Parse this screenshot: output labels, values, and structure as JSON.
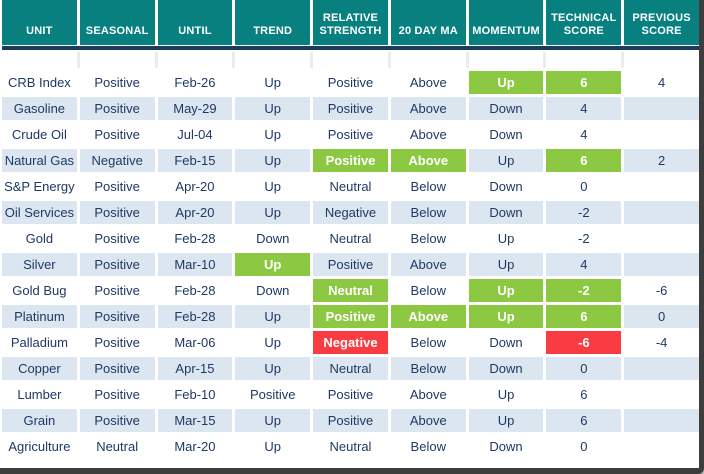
{
  "colors": {
    "teal": "#088080",
    "navy_line": "#1b3a5c",
    "text": "#1f3864",
    "alt_row": "#dce6f1",
    "green": "#8cc841",
    "red": "#f93b42",
    "frame": "#3d3d3d"
  },
  "table": {
    "columns": [
      "UNIT",
      "SEASONAL",
      "UNTIL",
      "TREND",
      "RELATIVE STRENGTH",
      "20 DAY MA",
      "MOMENTUM",
      "TECHNICAL SCORE",
      "PREVIOUS SCORE"
    ],
    "rows": [
      {
        "cells": [
          "CRB Index",
          "Positive",
          "Feb-26",
          "Up",
          "Positive",
          "Above",
          "Up",
          "6",
          "4"
        ],
        "highlights": {
          "6": "green",
          "7": "green"
        }
      },
      {
        "cells": [
          "Gasoline",
          "Positive",
          "May-29",
          "Up",
          "Positive",
          "Above",
          "Down",
          "4",
          ""
        ],
        "highlights": {}
      },
      {
        "cells": [
          "Crude Oil",
          "Positive",
          "Jul-04",
          "Up",
          "Positive",
          "Above",
          "Down",
          "4",
          ""
        ],
        "highlights": {}
      },
      {
        "cells": [
          "Natural Gas",
          "Negative",
          "Feb-15",
          "Up",
          "Positive",
          "Above",
          "Up",
          "6",
          "2"
        ],
        "highlights": {
          "4": "green",
          "5": "green",
          "7": "green"
        }
      },
      {
        "cells": [
          "S&P Energy",
          "Positive",
          "Apr-20",
          "Up",
          "Neutral",
          "Below",
          "Down",
          "0",
          ""
        ],
        "highlights": {}
      },
      {
        "cells": [
          "Oil Services",
          "Positive",
          "Apr-20",
          "Up",
          "Negative",
          "Below",
          "Down",
          "-2",
          ""
        ],
        "highlights": {}
      },
      {
        "cells": [
          "Gold",
          "Positive",
          "Feb-28",
          "Down",
          "Neutral",
          "Below",
          "Up",
          "-2",
          ""
        ],
        "highlights": {}
      },
      {
        "cells": [
          "Silver",
          "Positive",
          "Mar-10",
          "Up",
          "Positive",
          "Above",
          "Up",
          "4",
          ""
        ],
        "highlights": {
          "3": "green"
        }
      },
      {
        "cells": [
          "Gold Bug",
          "Positive",
          "Feb-28",
          "Down",
          "Neutral",
          "Below",
          "Up",
          "-2",
          "-6"
        ],
        "highlights": {
          "4": "green",
          "6": "green",
          "7": "green"
        }
      },
      {
        "cells": [
          "Platinum",
          "Positive",
          "Feb-28",
          "Up",
          "Positive",
          "Above",
          "Up",
          "6",
          "0"
        ],
        "highlights": {
          "4": "green",
          "5": "green",
          "6": "green",
          "7": "green"
        }
      },
      {
        "cells": [
          "Palladium",
          "Positive",
          "Mar-06",
          "Up",
          "Negative",
          "Below",
          "Down",
          "-6",
          "-4"
        ],
        "highlights": {
          "4": "red",
          "7": "red"
        }
      },
      {
        "cells": [
          "Copper",
          "Positive",
          "Apr-15",
          "Up",
          "Neutral",
          "Below",
          "Down",
          "0",
          ""
        ],
        "highlights": {}
      },
      {
        "cells": [
          "Lumber",
          "Positive",
          "Feb-10",
          "Positive",
          "Positive",
          "Above",
          "Up",
          "6",
          ""
        ],
        "highlights": {}
      },
      {
        "cells": [
          "Grain",
          "Positive",
          "Mar-15",
          "Up",
          "Positive",
          "Above",
          "Up",
          "6",
          ""
        ],
        "highlights": {}
      },
      {
        "cells": [
          "Agriculture",
          "Neutral",
          "Mar-20",
          "Up",
          "Neutral",
          "Below",
          "Down",
          "0",
          ""
        ],
        "highlights": {}
      }
    ]
  }
}
